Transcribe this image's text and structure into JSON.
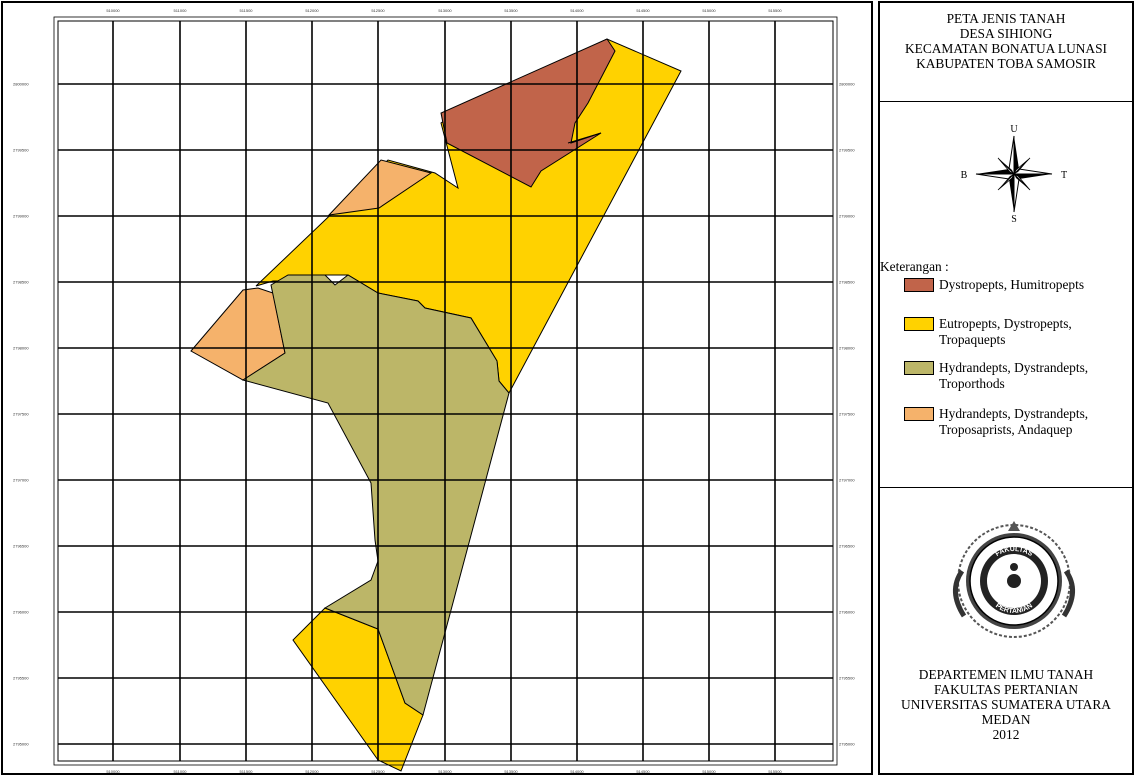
{
  "title": {
    "line1": "PETA JENIS TANAH",
    "line2": "DESA SIHIONG",
    "line3": "KECAMATAN BONATUA LUNASI",
    "line4": "KABUPATEN TOBA SAMOSIR"
  },
  "north_arrow": {
    "n": "U",
    "w": "B",
    "e": "T",
    "s": "S"
  },
  "legend": {
    "title": "Keterangan :",
    "items": [
      {
        "line1": "Dystropepts,  Humitropepts",
        "line2": "",
        "color": "#c1644a"
      },
      {
        "line1": "Eutropepts, Dystropepts,",
        "line2": "Tropaquepts",
        "color": "#ffd200"
      },
      {
        "line1": "Hydrandepts, Dystrandepts,",
        "line2": "Troporthods",
        "color": "#bcb668"
      },
      {
        "line1": "Hydrandepts, Dystrandepts,",
        "line2": "Troposaprists, Andaquep",
        "color": "#f5b26b"
      }
    ]
  },
  "logo": {
    "icon": "university-seal-icon",
    "top_text": "FAKULTAS",
    "bottom_text": "PERTANIAN"
  },
  "footer": {
    "line1": "DEPARTEMEN ILMU TANAH",
    "line2": "FAKULTAS PERTANIAN",
    "line3": "UNIVERSITAS SUMATERA UTARA",
    "line4": "MEDAN",
    "line5": "2012"
  },
  "grid": {
    "x_labels": [
      "510000",
      "511000",
      "511500",
      "512000",
      "512500",
      "513000",
      "513500",
      "514000",
      "514500",
      "515000",
      "515500"
    ],
    "y_labels": [
      "2800000",
      "2799500",
      "2799000",
      "2798500",
      "2798000",
      "2797500",
      "2797000",
      "2796500",
      "2796000",
      "2795500",
      "2795000"
    ]
  },
  "colors": {
    "dystropepts": "#c1644a",
    "eutropepts": "#ffd200",
    "hydrandepts_troporthods": "#bcb668",
    "hydrandepts_troposaprists": "#f5b26b"
  }
}
